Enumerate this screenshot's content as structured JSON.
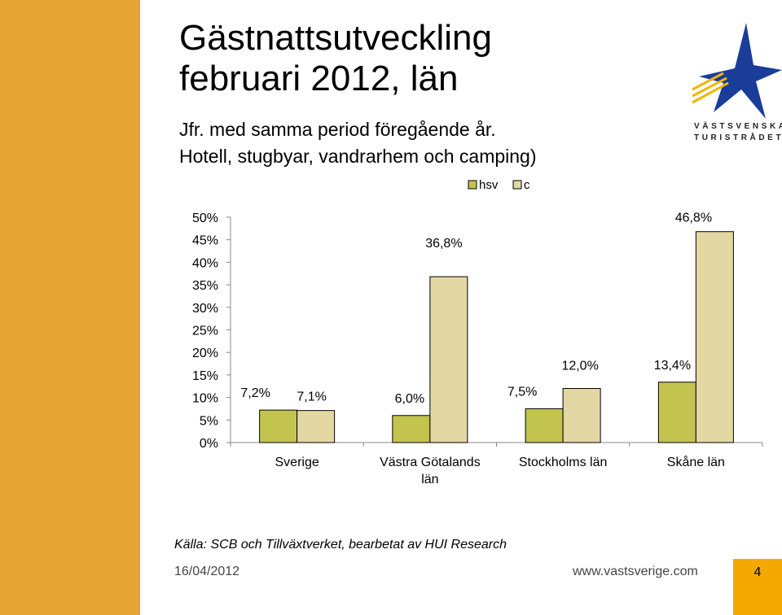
{
  "slide": {
    "title_line1": "Gästnattsutveckling",
    "title_line2": "februari 2012, län",
    "subtitle_line1": "Jfr. med samma period föregående år.",
    "subtitle_line2": "Hotell, stugbyar, vandrarhem och camping)",
    "logo_line1": "VÄSTSVENSKA",
    "logo_line2": "TURISTRÅDET",
    "source": "Källa: SCB och Tillväxtverket, bearbetat av HUI Research",
    "date": "16/04/2012",
    "url": "www.vastsverige.com",
    "page_number": "4"
  },
  "colors": {
    "sidebar": "#E5A434",
    "hsv": "#C3C350",
    "c": "#E3D8A4",
    "page_box": "#F5A800"
  },
  "chart_data": {
    "type": "bar",
    "title": "",
    "categories": [
      [
        "Sverige"
      ],
      [
        "Västra Götalands",
        "län"
      ],
      [
        "Stockholms län"
      ],
      [
        "Skåne län"
      ]
    ],
    "series": [
      {
        "name": "hsv",
        "values": [
          7.2,
          6.0,
          7.5,
          13.4
        ],
        "labels": [
          "7,2%",
          "6,0%",
          "7,5%",
          "13,4%"
        ]
      },
      {
        "name": "c",
        "values": [
          7.1,
          36.8,
          12.0,
          46.8
        ],
        "labels": [
          "7,1%",
          "36,8%",
          "12,0%",
          "46,8%"
        ]
      }
    ],
    "y_ticks": [
      0,
      5,
      10,
      15,
      20,
      25,
      30,
      35,
      40,
      45,
      50
    ],
    "y_tick_labels": [
      "0%",
      "5%",
      "10%",
      "15%",
      "20%",
      "25%",
      "30%",
      "35%",
      "40%",
      "45%",
      "50%"
    ],
    "ylim": [
      0,
      50
    ],
    "xlabel": "",
    "ylabel": "",
    "legend": "top",
    "grid": false
  }
}
